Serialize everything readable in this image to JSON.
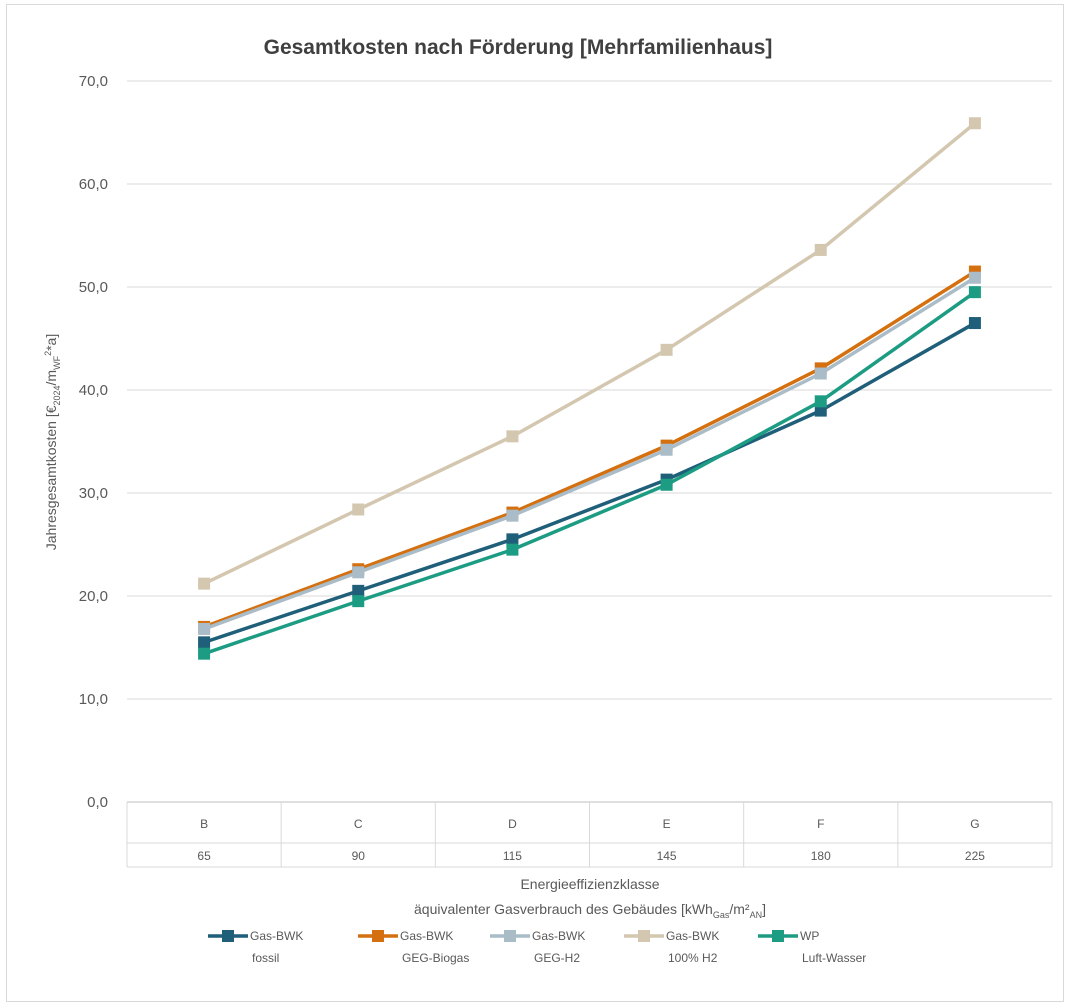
{
  "chart_data": {
    "type": "line",
    "title": "Gesamtkosten nach Förderung [Mehrfamilienhaus]",
    "ylabel": {
      "main": "Jahresgesamtkosten [€",
      "sub1": "2024",
      "mid": "/m",
      "sub2": "WF",
      "sup": "2",
      "tail": "*a]"
    },
    "xlabel": {
      "line1": "Energieeffizienzklasse",
      "line2_main": "äquivalenter Gasverbrauch des Gebäudes [kWh",
      "line2_sub1": "Gas",
      "line2_mid": "/m²",
      "line2_sub2": "AN",
      "line2_tail": "]"
    },
    "ylim": [
      0,
      70
    ],
    "yticks": [
      "0,0",
      "10,0",
      "20,0",
      "30,0",
      "40,0",
      "50,0",
      "60,0",
      "70,0"
    ],
    "categories": [
      "B",
      "C",
      "D",
      "E",
      "F",
      "G"
    ],
    "categories_secondary": [
      "65",
      "90",
      "115",
      "145",
      "180",
      "225"
    ],
    "grid": true,
    "legend_position": "bottom",
    "series": [
      {
        "name_line1": "Gas-BWK",
        "name_line2": "fossil",
        "color": "#1f5f7a",
        "values": [
          15.5,
          20.5,
          25.5,
          31.3,
          38.0,
          46.5
        ]
      },
      {
        "name_line1": "Gas-BWK",
        "name_line2": "GEG-Biogas",
        "color": "#d4700f",
        "values": [
          17.0,
          22.6,
          28.1,
          34.6,
          42.1,
          51.5
        ]
      },
      {
        "name_line1": "Gas-BWK",
        "name_line2": "GEG-H2",
        "color": "#a9bcc8",
        "values": [
          16.8,
          22.3,
          27.8,
          34.2,
          41.6,
          50.9
        ]
      },
      {
        "name_line1": "Gas-BWK",
        "name_line2": "100% H2",
        "color": "#d4c7b0",
        "values": [
          21.2,
          28.4,
          35.5,
          43.9,
          53.6,
          65.9
        ]
      },
      {
        "name_line1": "WP",
        "name_line2": "Luft-Wasser",
        "color": "#1c9c82",
        "values": [
          14.4,
          19.5,
          24.5,
          30.8,
          38.9,
          49.5
        ]
      }
    ]
  }
}
